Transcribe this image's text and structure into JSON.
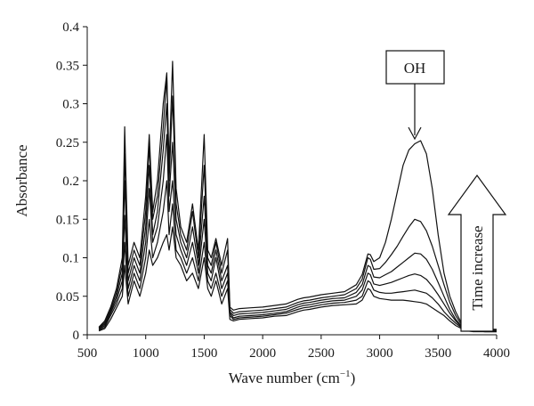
{
  "chart_data": {
    "type": "line",
    "title": "",
    "xlabel": "Wave number (cm",
    "xlabel_sup": "−1",
    "xlabel_close": ")",
    "ylabel": "Absorbance",
    "xlim": [
      500,
      4000
    ],
    "ylim": [
      0,
      0.4
    ],
    "x_ticks": [
      500,
      1000,
      1500,
      2000,
      2500,
      3000,
      3500,
      4000
    ],
    "y_ticks": [
      0,
      0.05,
      0.1,
      0.15,
      0.2,
      0.25,
      0.3,
      0.35,
      0.4
    ],
    "y_tick_labels": [
      "0",
      "0.05",
      "0.1",
      "0.15",
      "0.2",
      "0.25",
      "0.3",
      "0.35",
      "0.4"
    ],
    "grid": false,
    "legend": "none",
    "line_color": "#111111",
    "series": [
      {
        "x": [
          600,
          650,
          700,
          750,
          800,
          820,
          850,
          900,
          950,
          1000,
          1030,
          1060,
          1100,
          1150,
          1180,
          1200,
          1230,
          1260,
          1300,
          1350,
          1400,
          1450,
          1500,
          1530,
          1560,
          1600,
          1650,
          1700,
          1720,
          1750,
          1800,
          1900,
          2000,
          2100,
          2200,
          2300,
          2350,
          2400,
          2500,
          2600,
          2700,
          2800,
          2850,
          2900,
          2920,
          2950,
          3000,
          3050,
          3100,
          3150,
          3200,
          3250,
          3300,
          3350,
          3400,
          3450,
          3500,
          3550,
          3600,
          3650,
          3700,
          3750,
          3800,
          3900,
          4000
        ],
        "y": [
          0.005,
          0.008,
          0.02,
          0.035,
          0.05,
          0.09,
          0.04,
          0.07,
          0.05,
          0.08,
          0.11,
          0.09,
          0.1,
          0.12,
          0.13,
          0.11,
          0.14,
          0.1,
          0.09,
          0.07,
          0.08,
          0.06,
          0.1,
          0.06,
          0.05,
          0.07,
          0.04,
          0.06,
          0.02,
          0.018,
          0.02,
          0.021,
          0.022,
          0.024,
          0.025,
          0.03,
          0.032,
          0.033,
          0.036,
          0.038,
          0.039,
          0.04,
          0.045,
          0.06,
          0.058,
          0.05,
          0.047,
          0.046,
          0.045,
          0.045,
          0.045,
          0.044,
          0.043,
          0.042,
          0.04,
          0.035,
          0.03,
          0.025,
          0.018,
          0.012,
          0.008,
          0.005,
          0.004,
          0.004,
          0.004
        ]
      },
      {
        "x": [
          600,
          650,
          700,
          750,
          800,
          820,
          850,
          900,
          950,
          1000,
          1030,
          1060,
          1100,
          1150,
          1180,
          1200,
          1230,
          1260,
          1300,
          1350,
          1400,
          1450,
          1500,
          1530,
          1560,
          1600,
          1650,
          1700,
          1720,
          1750,
          1800,
          1900,
          2000,
          2100,
          2200,
          2300,
          2350,
          2400,
          2500,
          2600,
          2700,
          2800,
          2850,
          2900,
          2920,
          2950,
          3000,
          3050,
          3100,
          3150,
          3200,
          3250,
          3300,
          3350,
          3400,
          3450,
          3500,
          3550,
          3600,
          3650,
          3700,
          3750,
          3800,
          3900,
          4000
        ],
        "y": [
          0.006,
          0.01,
          0.025,
          0.04,
          0.06,
          0.12,
          0.05,
          0.08,
          0.06,
          0.1,
          0.15,
          0.1,
          0.12,
          0.16,
          0.2,
          0.13,
          0.17,
          0.11,
          0.1,
          0.08,
          0.1,
          0.07,
          0.12,
          0.07,
          0.06,
          0.08,
          0.05,
          0.07,
          0.025,
          0.02,
          0.022,
          0.023,
          0.024,
          0.026,
          0.028,
          0.033,
          0.035,
          0.036,
          0.039,
          0.041,
          0.042,
          0.045,
          0.05,
          0.07,
          0.068,
          0.058,
          0.055,
          0.054,
          0.054,
          0.055,
          0.056,
          0.057,
          0.058,
          0.056,
          0.054,
          0.048,
          0.04,
          0.03,
          0.022,
          0.015,
          0.009,
          0.006,
          0.005,
          0.004,
          0.004
        ]
      },
      {
        "x": [
          600,
          650,
          700,
          750,
          800,
          820,
          850,
          900,
          950,
          1000,
          1030,
          1060,
          1100,
          1150,
          1180,
          1200,
          1230,
          1260,
          1300,
          1350,
          1400,
          1450,
          1500,
          1530,
          1560,
          1600,
          1650,
          1700,
          1720,
          1750,
          1800,
          1900,
          2000,
          2100,
          2200,
          2300,
          2350,
          2400,
          2500,
          2600,
          2700,
          2800,
          2850,
          2900,
          2920,
          2950,
          3000,
          3050,
          3100,
          3150,
          3200,
          3250,
          3300,
          3350,
          3400,
          3450,
          3500,
          3550,
          3600,
          3650,
          3700,
          3750,
          3800,
          3900,
          4000
        ],
        "y": [
          0.007,
          0.012,
          0.028,
          0.045,
          0.07,
          0.155,
          0.06,
          0.09,
          0.07,
          0.12,
          0.19,
          0.12,
          0.14,
          0.2,
          0.26,
          0.16,
          0.2,
          0.13,
          0.11,
          0.09,
          0.12,
          0.08,
          0.15,
          0.08,
          0.07,
          0.1,
          0.06,
          0.08,
          0.028,
          0.022,
          0.024,
          0.025,
          0.026,
          0.028,
          0.03,
          0.036,
          0.038,
          0.039,
          0.042,
          0.044,
          0.045,
          0.05,
          0.058,
          0.08,
          0.078,
          0.066,
          0.064,
          0.066,
          0.068,
          0.071,
          0.074,
          0.077,
          0.079,
          0.077,
          0.072,
          0.063,
          0.052,
          0.04,
          0.028,
          0.018,
          0.01,
          0.007,
          0.005,
          0.004,
          0.004
        ]
      },
      {
        "x": [
          600,
          650,
          700,
          750,
          800,
          820,
          850,
          900,
          950,
          1000,
          1030,
          1060,
          1100,
          1150,
          1180,
          1200,
          1230,
          1260,
          1300,
          1350,
          1400,
          1450,
          1500,
          1530,
          1560,
          1600,
          1650,
          1700,
          1720,
          1750,
          1800,
          1900,
          2000,
          2100,
          2200,
          2300,
          2350,
          2400,
          2500,
          2600,
          2700,
          2800,
          2850,
          2900,
          2920,
          2950,
          3000,
          3050,
          3100,
          3150,
          3200,
          3250,
          3300,
          3350,
          3400,
          3450,
          3500,
          3550,
          3600,
          3650,
          3700,
          3750,
          3800,
          3900,
          4000
        ],
        "y": [
          0.008,
          0.014,
          0.03,
          0.05,
          0.08,
          0.2,
          0.07,
          0.1,
          0.08,
          0.14,
          0.22,
          0.13,
          0.16,
          0.24,
          0.3,
          0.18,
          0.25,
          0.15,
          0.12,
          0.1,
          0.14,
          0.09,
          0.18,
          0.09,
          0.08,
          0.11,
          0.07,
          0.09,
          0.03,
          0.025,
          0.027,
          0.028,
          0.029,
          0.031,
          0.033,
          0.039,
          0.041,
          0.042,
          0.045,
          0.047,
          0.048,
          0.055,
          0.065,
          0.09,
          0.088,
          0.075,
          0.074,
          0.078,
          0.082,
          0.088,
          0.094,
          0.1,
          0.106,
          0.105,
          0.098,
          0.085,
          0.068,
          0.05,
          0.033,
          0.02,
          0.011,
          0.008,
          0.006,
          0.005,
          0.005
        ]
      },
      {
        "x": [
          600,
          650,
          700,
          750,
          800,
          820,
          850,
          900,
          950,
          1000,
          1030,
          1060,
          1100,
          1150,
          1180,
          1200,
          1230,
          1260,
          1300,
          1350,
          1400,
          1450,
          1500,
          1530,
          1560,
          1600,
          1650,
          1700,
          1720,
          1750,
          1800,
          1900,
          2000,
          2100,
          2200,
          2300,
          2350,
          2400,
          2500,
          2600,
          2700,
          2800,
          2850,
          2900,
          2920,
          2950,
          3000,
          3050,
          3100,
          3150,
          3200,
          3250,
          3300,
          3350,
          3400,
          3450,
          3500,
          3550,
          3600,
          3650,
          3700,
          3750,
          3800,
          3900,
          4000
        ],
        "y": [
          0.009,
          0.016,
          0.033,
          0.055,
          0.09,
          0.235,
          0.08,
          0.11,
          0.09,
          0.16,
          0.245,
          0.15,
          0.18,
          0.27,
          0.335,
          0.2,
          0.31,
          0.17,
          0.13,
          0.11,
          0.16,
          0.1,
          0.22,
          0.1,
          0.09,
          0.12,
          0.08,
          0.11,
          0.033,
          0.028,
          0.03,
          0.031,
          0.032,
          0.034,
          0.036,
          0.042,
          0.044,
          0.045,
          0.048,
          0.05,
          0.052,
          0.06,
          0.072,
          0.1,
          0.098,
          0.085,
          0.086,
          0.094,
          0.104,
          0.115,
          0.128,
          0.14,
          0.15,
          0.147,
          0.135,
          0.115,
          0.09,
          0.065,
          0.042,
          0.025,
          0.013,
          0.009,
          0.007,
          0.006,
          0.006
        ]
      },
      {
        "x": [
          600,
          650,
          700,
          750,
          800,
          820,
          850,
          900,
          950,
          1000,
          1030,
          1060,
          1100,
          1150,
          1180,
          1200,
          1230,
          1260,
          1300,
          1350,
          1400,
          1450,
          1500,
          1530,
          1560,
          1600,
          1650,
          1700,
          1720,
          1750,
          1800,
          1900,
          2000,
          2100,
          2200,
          2300,
          2350,
          2400,
          2500,
          2600,
          2700,
          2800,
          2850,
          2900,
          2920,
          2950,
          3000,
          3050,
          3100,
          3150,
          3200,
          3250,
          3300,
          3350,
          3400,
          3450,
          3500,
          3550,
          3600,
          3650,
          3700,
          3750,
          3800,
          3900,
          4000
        ],
        "y": [
          0.01,
          0.018,
          0.036,
          0.06,
          0.1,
          0.27,
          0.09,
          0.12,
          0.1,
          0.18,
          0.26,
          0.16,
          0.2,
          0.3,
          0.34,
          0.22,
          0.355,
          0.19,
          0.14,
          0.12,
          0.17,
          0.11,
          0.26,
          0.11,
          0.1,
          0.125,
          0.09,
          0.125,
          0.036,
          0.032,
          0.034,
          0.035,
          0.036,
          0.038,
          0.04,
          0.046,
          0.048,
          0.049,
          0.052,
          0.054,
          0.056,
          0.065,
          0.078,
          0.105,
          0.104,
          0.095,
          0.1,
          0.12,
          0.15,
          0.185,
          0.22,
          0.24,
          0.248,
          0.252,
          0.235,
          0.19,
          0.13,
          0.08,
          0.05,
          0.03,
          0.015,
          0.01,
          0.008,
          0.007,
          0.007
        ]
      }
    ],
    "annotations": [
      {
        "text": "OH",
        "type": "boxed-label-with-arrow",
        "target_x": 3340,
        "target_y": 0.252
      },
      {
        "text": "Time increase",
        "type": "up-arrow"
      }
    ]
  }
}
